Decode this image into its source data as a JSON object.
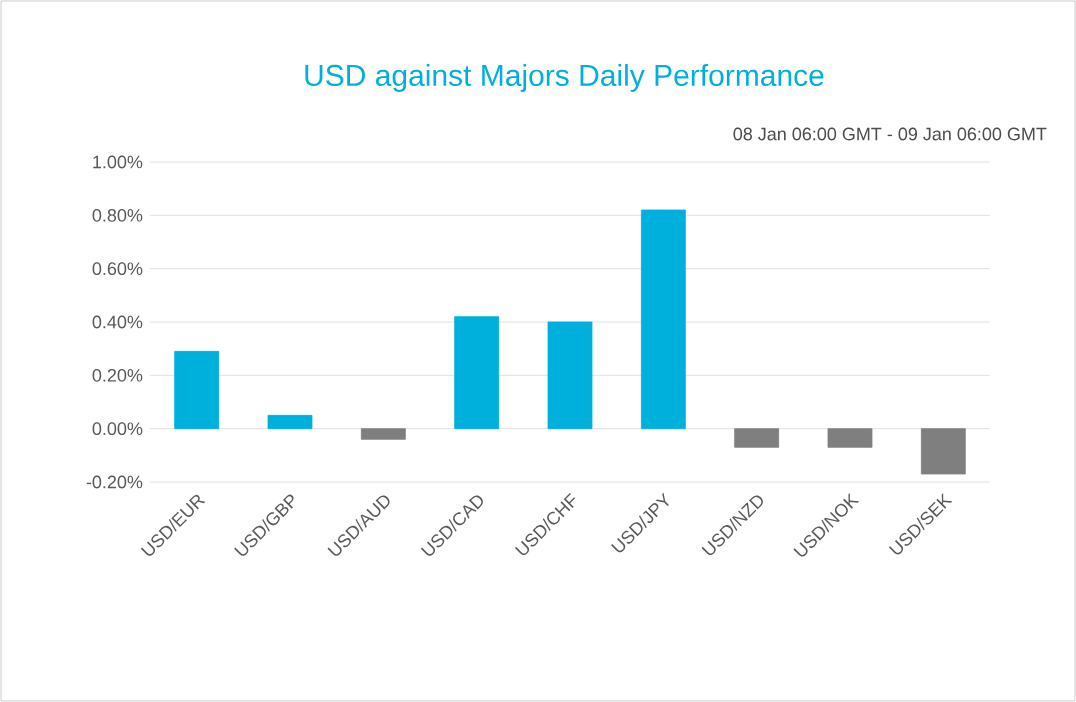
{
  "chart_data": {
    "type": "bar",
    "title": "USD against Majors Daily Performance",
    "subtitle": "08 Jan 06:00 GMT - 09 Jan  06:00 GMT",
    "categories": [
      "USD/EUR",
      "USD/GBP",
      "USD/AUD",
      "USD/CAD",
      "USD/CHF",
      "USD/JPY",
      "USD/NZD",
      "USD/NOK",
      "USD/SEK"
    ],
    "values": [
      0.29,
      0.05,
      -0.04,
      0.42,
      0.4,
      0.82,
      -0.07,
      -0.07,
      -0.17
    ],
    "colors": [
      "#00b0dc",
      "#00b0dc",
      "#7f7f7f",
      "#00b0dc",
      "#00b0dc",
      "#00b0dc",
      "#7f7f7f",
      "#7f7f7f",
      "#7f7f7f"
    ],
    "ylim": [
      -0.2,
      1.0
    ],
    "yticks": [
      {
        "value": -0.2,
        "label": "-0.20%"
      },
      {
        "value": 0.0,
        "label": "0.00%"
      },
      {
        "value": 0.2,
        "label": "0.20%"
      },
      {
        "value": 0.4,
        "label": "0.40%"
      },
      {
        "value": 0.6,
        "label": "0.60%"
      },
      {
        "value": 0.8,
        "label": "0.80%"
      },
      {
        "value": 1.0,
        "label": "1.00%"
      }
    ],
    "grid": "y"
  }
}
